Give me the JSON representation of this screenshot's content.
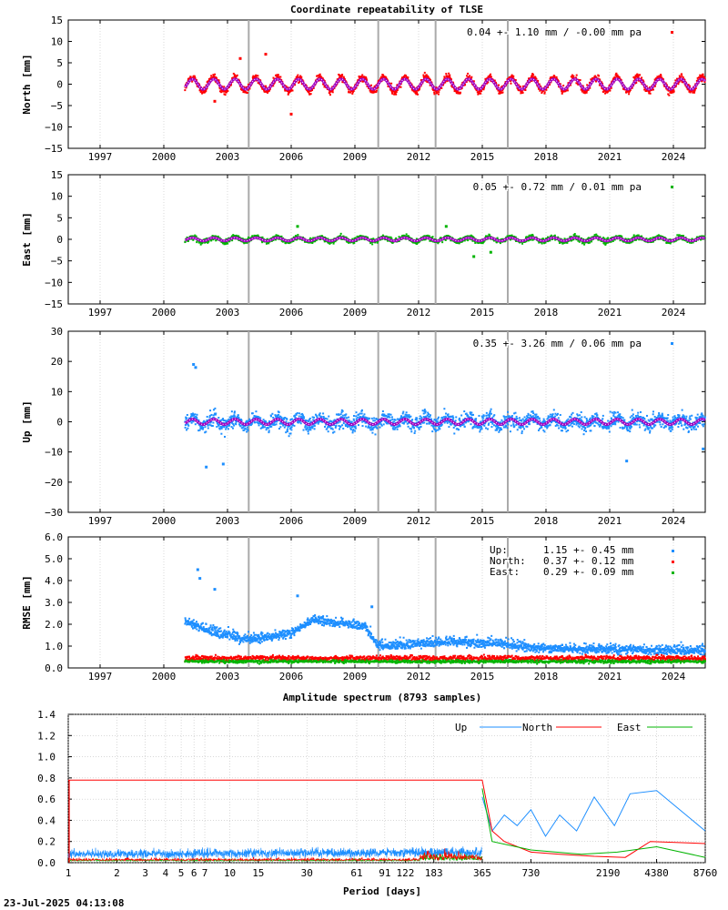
{
  "title": "Coordinate repeatability of TLSE",
  "timestamp": "23-Jul-2025 04:13:08",
  "colors": {
    "north": "#ff0000",
    "east": "#00b400",
    "up": "#1e8fff",
    "model": "#a000c0",
    "offset": "#aaaaaa",
    "grid": "#c0c0c0"
  },
  "chart_data": [
    {
      "id": "north",
      "type": "scatter",
      "ylabel": "North [mm]",
      "ylim": [
        -15,
        15
      ],
      "yticks": [
        "15",
        "10",
        "5",
        "0",
        "−5",
        "−10",
        "−15"
      ],
      "xlim": [
        1995.5,
        2025.5
      ],
      "xticks": [
        "1997",
        "2000",
        "2003",
        "2006",
        "2009",
        "2012",
        "2015",
        "2018",
        "2021",
        "2024"
      ],
      "stats": "0.04 +- 1.10 mm / -0.00 mm pa",
      "scatter_sigma": 1.1,
      "season_amp": 1.6,
      "start": 2001.0,
      "end": 2025.5,
      "offsets": [
        2004.0,
        2010.1,
        2012.8,
        2016.2
      ],
      "outliers": [
        [
          2003.6,
          6
        ],
        [
          2004.8,
          7
        ],
        [
          2006.0,
          -7
        ],
        [
          2002.4,
          -4
        ]
      ]
    },
    {
      "id": "east",
      "type": "scatter",
      "ylabel": "East [mm]",
      "ylim": [
        -15,
        15
      ],
      "yticks": [
        "15",
        "10",
        "5",
        "0",
        "−5",
        "−10",
        "−15"
      ],
      "xlim": [
        1995.5,
        2025.5
      ],
      "xticks": [
        "1997",
        "2000",
        "2003",
        "2006",
        "2009",
        "2012",
        "2015",
        "2018",
        "2021",
        "2024"
      ],
      "stats": "0.05 +- 0.72 mm /  0.01 mm pa",
      "scatter_sigma": 0.72,
      "season_amp": 0.5,
      "start": 2001.0,
      "end": 2025.5,
      "offsets": [
        2004.0,
        2010.1,
        2012.8,
        2016.2
      ],
      "outliers": [
        [
          2006.3,
          3
        ],
        [
          2013.3,
          3
        ],
        [
          2014.6,
          -4
        ],
        [
          2015.4,
          -3
        ]
      ]
    },
    {
      "id": "up",
      "type": "scatter",
      "ylabel": "Up [mm]",
      "ylim": [
        -30,
        30
      ],
      "yticks": [
        "30",
        "20",
        "10",
        "0",
        "−10",
        "−20",
        "−30"
      ],
      "xlim": [
        1995.5,
        2025.5
      ],
      "xticks": [
        "1997",
        "2000",
        "2003",
        "2006",
        "2009",
        "2012",
        "2015",
        "2018",
        "2021",
        "2024"
      ],
      "stats": "0.35 +- 3.26 mm /  0.06 mm pa",
      "scatter_sigma": 3.26,
      "season_amp": 1.2,
      "start": 2001.0,
      "end": 2025.5,
      "offsets": [
        2004.0,
        2010.1,
        2012.8,
        2016.2
      ],
      "outliers": [
        [
          2001.4,
          19
        ],
        [
          2001.5,
          18
        ],
        [
          2002.0,
          -15
        ],
        [
          2002.8,
          -14
        ],
        [
          2021.8,
          -13
        ],
        [
          2025.4,
          -9
        ]
      ]
    },
    {
      "id": "rmse",
      "type": "scatter",
      "ylabel": "RMSE [mm]",
      "ylim": [
        0,
        6
      ],
      "yticks": [
        "6.0",
        "5.0",
        "4.0",
        "3.0",
        "2.0",
        "1.0",
        "0.0"
      ],
      "xlim": [
        1995.5,
        2025.5
      ],
      "xticks": [
        "1997",
        "2000",
        "2003",
        "2006",
        "2009",
        "2012",
        "2015",
        "2018",
        "2021",
        "2024"
      ],
      "legend": [
        {
          "name": "Up:",
          "value": "1.15 +- 0.45 mm"
        },
        {
          "name": "North:",
          "value": "0.37 +- 0.12 mm"
        },
        {
          "name": "East:",
          "value": "0.29 +- 0.09 mm"
        }
      ],
      "up_levels": [
        [
          2001.0,
          2.0
        ],
        [
          2002.5,
          1.5
        ],
        [
          2004.0,
          1.2
        ],
        [
          2006.0,
          1.5
        ],
        [
          2007.0,
          2.1
        ],
        [
          2009.5,
          1.8
        ],
        [
          2010.1,
          0.9
        ],
        [
          2012.0,
          1.0
        ],
        [
          2013.5,
          1.1
        ],
        [
          2016.0,
          1.0
        ],
        [
          2017.5,
          0.8
        ],
        [
          2025.5,
          0.7
        ]
      ],
      "north_level": 0.45,
      "east_level": 0.3,
      "up_outliers": [
        [
          2001.6,
          4.5
        ],
        [
          2001.7,
          4.1
        ],
        [
          2002.4,
          3.6
        ],
        [
          2006.3,
          3.3
        ],
        [
          2009.8,
          2.8
        ]
      ]
    },
    {
      "id": "spectrum",
      "type": "line",
      "title": "Amplitude spectrum (8793 samples)",
      "xlabel": "Period [days]",
      "xscale": "log",
      "xlim": [
        1,
        8760
      ],
      "ylim": [
        0,
        1.4
      ],
      "yticks": [
        "1.4",
        "1.2",
        "1.0",
        "0.8",
        "0.6",
        "0.4",
        "0.2",
        "0.0"
      ],
      "xticks": [
        1,
        2,
        3,
        4,
        5,
        6,
        7,
        10,
        15,
        30,
        61,
        91,
        122,
        183,
        365,
        730,
        2190,
        4380,
        8760
      ],
      "series": [
        {
          "name": "Up",
          "key": "up",
          "points": [
            [
              365,
              0.62
            ],
            [
              420,
              0.3
            ],
            [
              500,
              0.45
            ],
            [
              600,
              0.35
            ],
            [
              730,
              0.5
            ],
            [
              900,
              0.25
            ],
            [
              1100,
              0.45
            ],
            [
              1400,
              0.3
            ],
            [
              1800,
              0.62
            ],
            [
              2400,
              0.35
            ],
            [
              3000,
              0.65
            ],
            [
              4380,
              0.68
            ],
            [
              8760,
              0.3
            ]
          ]
        },
        {
          "name": "North",
          "key": "north",
          "points": [
            [
              1,
              0.78
            ],
            [
              365,
              0.78
            ],
            [
              420,
              0.3
            ],
            [
              500,
              0.2
            ],
            [
              730,
              0.1
            ],
            [
              1100,
              0.08
            ],
            [
              1800,
              0.06
            ],
            [
              2800,
              0.05
            ],
            [
              4000,
              0.2
            ],
            [
              8760,
              0.18
            ]
          ]
        },
        {
          "name": "East",
          "key": "east",
          "points": [
            [
              365,
              0.7
            ],
            [
              420,
              0.2
            ],
            [
              730,
              0.12
            ],
            [
              1500,
              0.08
            ],
            [
              2500,
              0.1
            ],
            [
              4380,
              0.15
            ],
            [
              8760,
              0.05
            ]
          ]
        }
      ]
    }
  ]
}
